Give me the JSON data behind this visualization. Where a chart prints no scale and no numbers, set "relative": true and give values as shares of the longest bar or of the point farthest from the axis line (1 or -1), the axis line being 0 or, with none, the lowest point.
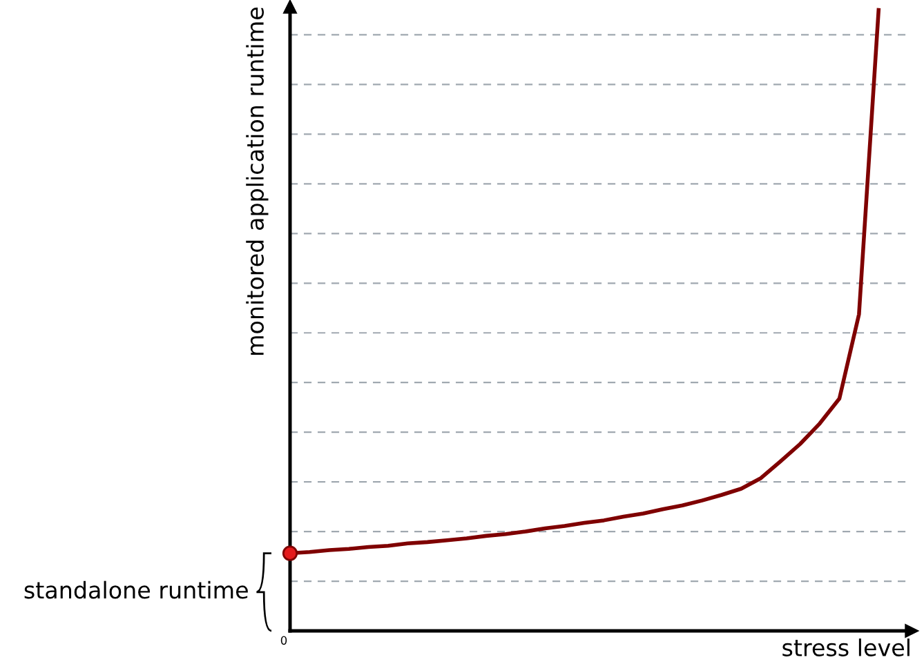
{
  "chart_data": {
    "type": "line",
    "relative": true,
    "xlabel": "stress level",
    "ylabel": "monitored application runtime",
    "grid": "y",
    "annotations": [
      "0",
      "standalone runtime"
    ],
    "categories": [
      null,
      null,
      null,
      null,
      null,
      null,
      null,
      null,
      null,
      null,
      null,
      null,
      null,
      null,
      null,
      null,
      null,
      null,
      null,
      null,
      null,
      null,
      null,
      null,
      null,
      null,
      null,
      null,
      null,
      null,
      null
    ],
    "series": [
      {
        "color": "#7f0000",
        "values": [
          0.125,
          0.127,
          0.13,
          0.132,
          0.135,
          0.137,
          0.141,
          0.143,
          0.146,
          0.149,
          0.153,
          0.156,
          0.16,
          0.165,
          0.169,
          0.174,
          0.178,
          0.184,
          0.189,
          0.196,
          0.202,
          0.21,
          0.219,
          0.229,
          0.246,
          0.273,
          0.301,
          0.334,
          0.374,
          0.51,
          1
        ]
      }
    ]
  }
}
